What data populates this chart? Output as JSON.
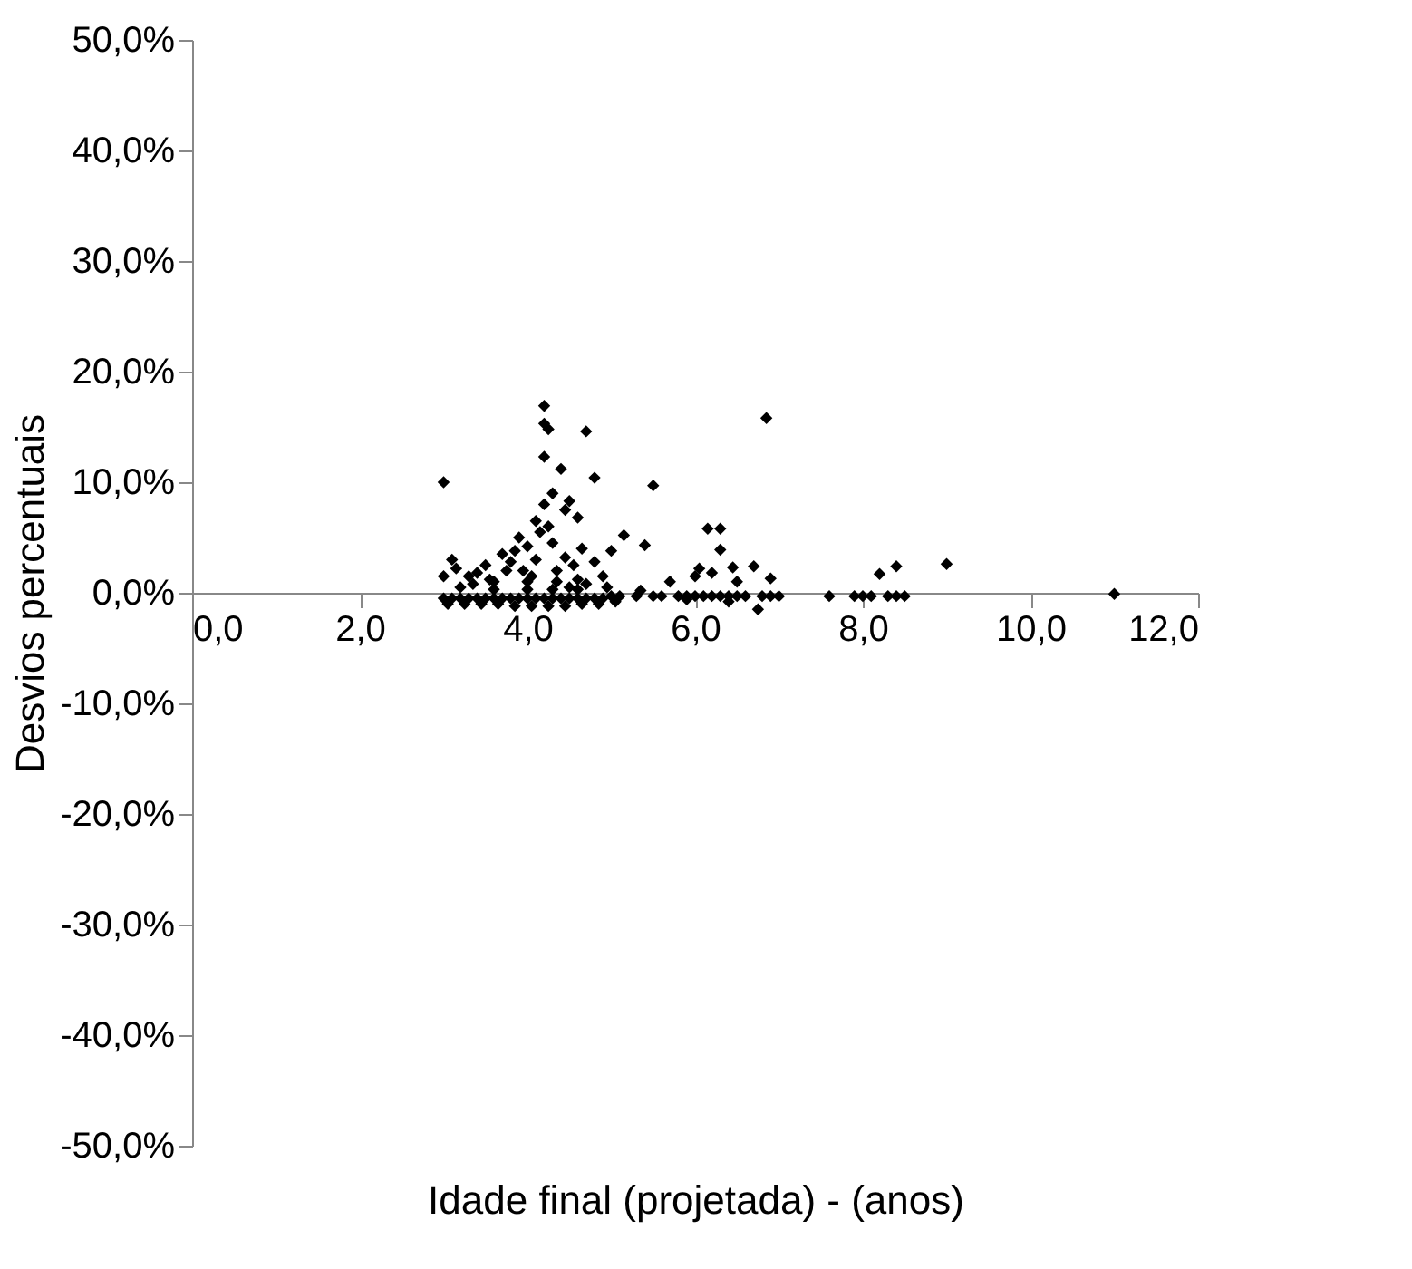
{
  "chart_data": {
    "type": "scatter",
    "xlabel": "Idade final (projetada) - (anos)",
    "ylabel": "Desvios percentuais",
    "marker": "diamond",
    "grid": false,
    "xlim": [
      0,
      12
    ],
    "ylim": [
      -50,
      50
    ],
    "xticks": [
      {
        "value": 0,
        "label": "0,0"
      },
      {
        "value": 2,
        "label": "2,0"
      },
      {
        "value": 4,
        "label": "4,0"
      },
      {
        "value": 6,
        "label": "6,0"
      },
      {
        "value": 8,
        "label": "8,0"
      },
      {
        "value": 10,
        "label": "10,0"
      },
      {
        "value": 12,
        "label": "12,0"
      }
    ],
    "yticks": [
      {
        "value": -50,
        "label": "-50,0%"
      },
      {
        "value": -40,
        "label": "-40,0%"
      },
      {
        "value": -30,
        "label": "-30,0%"
      },
      {
        "value": -20,
        "label": "-20,0%"
      },
      {
        "value": -10,
        "label": "-10,0%"
      },
      {
        "value": 0,
        "label": "0,0%"
      },
      {
        "value": 10,
        "label": "10,0%"
      },
      {
        "value": 20,
        "label": "20,0%"
      },
      {
        "value": 30,
        "label": "30,0%"
      },
      {
        "value": 40,
        "label": "40,0%"
      },
      {
        "value": 50,
        "label": "50,0%"
      }
    ],
    "series": [
      {
        "color": "#000000",
        "x": [
          3.0,
          4.2,
          4.2,
          4.25,
          4.7,
          4.4,
          4.2,
          4.8,
          5.5,
          6.85,
          3.1,
          3.15,
          4.3,
          4.2,
          4.5,
          4.45,
          4.1,
          4.6,
          5.15,
          5.0,
          5.4,
          6.15,
          6.3,
          6.3,
          6.45,
          6.05,
          5.7,
          6.9,
          8.2,
          8.4,
          9.0,
          11.0,
          3.7,
          3.5,
          3.3,
          3.0,
          3.9,
          4.0,
          3.8,
          4.3,
          4.1,
          4.35,
          4.55,
          4.0,
          3.6,
          3.4,
          4.65,
          4.9,
          4.8,
          4.15,
          4.25,
          3.85,
          3.95,
          4.45,
          4.6,
          3.2,
          3.35,
          3.55,
          3.75,
          4.05,
          4.35,
          4.5,
          4.7,
          4.95,
          6.0,
          6.2,
          6.5,
          6.7,
          3.0,
          3.1,
          3.2,
          3.3,
          3.4,
          3.5,
          3.6,
          3.7,
          3.8,
          3.9,
          4.0,
          4.1,
          4.2,
          4.3,
          4.4,
          4.5,
          4.6,
          4.7,
          4.8,
          4.9,
          5.0,
          5.1,
          5.3,
          5.5,
          5.6,
          5.8,
          5.9,
          6.0,
          6.1,
          6.2,
          6.3,
          6.4,
          6.5,
          6.6,
          6.8,
          6.9,
          7.0,
          7.6,
          7.9,
          8.0,
          8.1,
          8.3,
          8.4,
          8.5,
          3.05,
          3.25,
          3.45,
          3.65,
          3.85,
          4.05,
          4.25,
          4.45,
          4.65,
          4.85,
          5.05,
          5.35,
          5.9,
          6.4,
          6.75,
          3.6,
          4.0,
          4.3,
          4.6
        ],
        "values": [
          10.0,
          16.9,
          15.3,
          14.8,
          14.6,
          11.2,
          12.3,
          10.4,
          9.7,
          15.8,
          3.0,
          2.2,
          9.0,
          8.0,
          8.3,
          7.5,
          6.5,
          6.8,
          5.2,
          3.8,
          4.3,
          5.8,
          5.8,
          3.9,
          2.3,
          2.2,
          1.0,
          1.3,
          1.7,
          2.4,
          2.6,
          -0.1,
          3.5,
          2.5,
          1.5,
          1.5,
          5.0,
          4.2,
          2.8,
          4.5,
          3.0,
          2.0,
          2.5,
          1.0,
          1.0,
          1.8,
          4.0,
          1.5,
          2.8,
          5.5,
          6.0,
          3.8,
          2.0,
          3.2,
          1.2,
          0.5,
          0.8,
          1.2,
          2.0,
          1.5,
          1.0,
          0.5,
          0.8,
          0.5,
          1.5,
          1.8,
          1.0,
          2.4,
          -0.5,
          -0.5,
          -0.5,
          -0.5,
          -0.5,
          -0.5,
          -0.5,
          -0.5,
          -0.5,
          -0.5,
          -0.5,
          -0.5,
          -0.5,
          -0.5,
          -0.5,
          -0.5,
          -0.5,
          -0.5,
          -0.5,
          -0.5,
          -0.3,
          -0.3,
          -0.3,
          -0.3,
          -0.3,
          -0.3,
          -0.3,
          -0.3,
          -0.3,
          -0.3,
          -0.3,
          -0.3,
          -0.3,
          -0.3,
          -0.3,
          -0.3,
          -0.3,
          -0.3,
          -0.3,
          -0.3,
          -0.3,
          -0.3,
          -0.3,
          -0.3,
          -1.0,
          -1.0,
          -1.0,
          -1.0,
          -1.2,
          -1.2,
          -1.2,
          -1.2,
          -1.0,
          -1.0,
          -0.8,
          0.2,
          -0.6,
          -0.8,
          -1.5,
          0.3,
          0.3,
          0.3,
          0.3
        ]
      }
    ]
  }
}
